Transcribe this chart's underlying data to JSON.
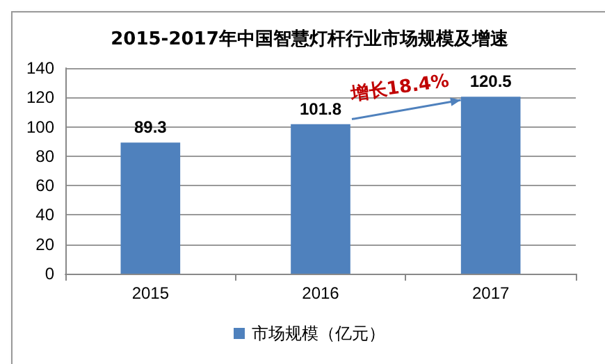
{
  "chart_data": {
    "type": "bar",
    "title": "2015-2017年中国智慧灯杆行业市场规模及增速",
    "categories": [
      "2015",
      "2016",
      "2017"
    ],
    "series": [
      {
        "name": "市场规模（亿元）",
        "color": "#4f81bd",
        "values": [
          89.3,
          101.8,
          120.5
        ]
      }
    ],
    "ylim": [
      0,
      140
    ],
    "yticks": [
      0,
      20,
      40,
      60,
      80,
      100,
      120,
      140
    ],
    "grid": "y",
    "legend": "bottom",
    "data_labels": true,
    "annotations": [
      "增长18.4%"
    ]
  }
}
